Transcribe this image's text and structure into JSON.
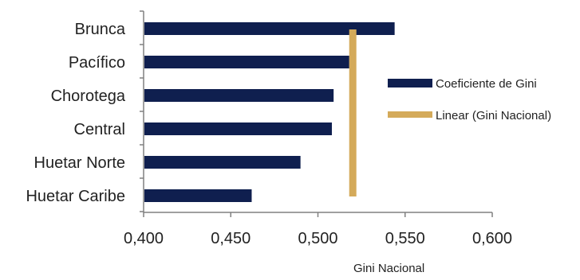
{
  "chart_data": {
    "type": "bar",
    "orientation": "horizontal",
    "categories": [
      "Brunca",
      "Pacífico",
      "Chorotega",
      "Central",
      "Huetar Norte",
      "Huetar Caribe"
    ],
    "series": [
      {
        "name": "Coeficiente de Gini",
        "values": [
          0.544,
          0.518,
          0.509,
          0.508,
          0.49,
          0.462
        ],
        "color": "#0f1f4f"
      },
      {
        "name": "Linear (Gini Nacional)",
        "value": 0.52,
        "type": "reference-line",
        "color": "#d4aa5a"
      }
    ],
    "xlim": [
      0.4,
      0.6
    ],
    "xticks": [
      "0,400",
      "0,450",
      "0,500",
      "0,550",
      "0,600"
    ],
    "xtick_values": [
      0.4,
      0.45,
      0.5,
      0.55,
      0.6
    ],
    "annotation": "Gini Nacional",
    "legend_position": "right",
    "grid": false
  }
}
